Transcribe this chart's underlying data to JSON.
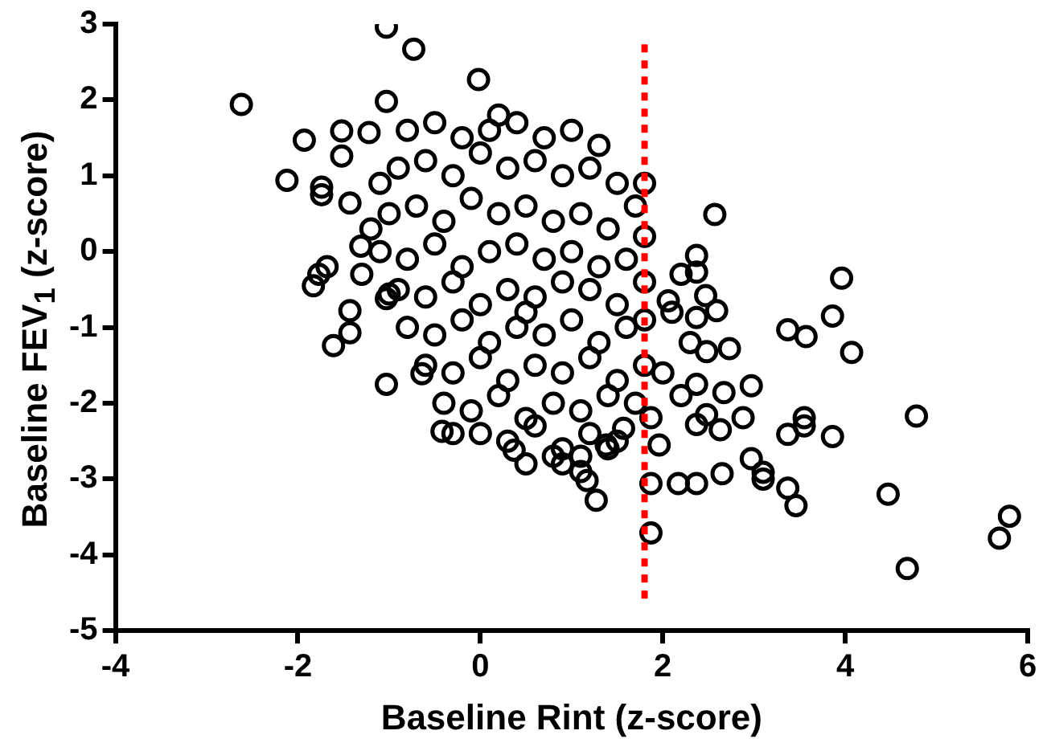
{
  "chart_data": {
    "type": "scatter",
    "xlabel": "Baseline Rint (z-score)",
    "ylabel": "Baseline FEV$_{1}$ (z-score)",
    "xlim": [
      -4,
      6
    ],
    "xticks": [
      -4,
      -2,
      0,
      2,
      4,
      6
    ],
    "ylim": [
      -5,
      3
    ],
    "yticks": [
      -5,
      -4,
      -3,
      -2,
      -1,
      0,
      1,
      2,
      3
    ],
    "grid": false,
    "legend": false,
    "marker": "circle",
    "ref_lines": [
      {
        "axis": "x",
        "value": 1.8,
        "color": "#ff0000",
        "line_style": "dotted"
      }
    ],
    "series": [
      {
        "color": "#000000",
        "x": [
          -1.03,
          -0.73,
          -0.02,
          -2.62,
          -1.03,
          -1.93,
          -1.52,
          -1.22,
          -1.52,
          -2.12,
          -1.74,
          -1.74,
          -1.43,
          -1.31,
          -1.77,
          -1.68,
          -1.83,
          -1.43,
          -1.43,
          -1.61,
          -1.03,
          -0.64,
          -0.42,
          0.37,
          -1.0,
          -1.03,
          2.57,
          2.37,
          2.37,
          3.96,
          3.86,
          3.37,
          3.57,
          4.07,
          2.06,
          2.47,
          2.59,
          2.37,
          2.73,
          2.48,
          2.97,
          2.67,
          2.37,
          3.55,
          3.55,
          3.37,
          3.86,
          4.78,
          2.88,
          2.37,
          2.63,
          2.48,
          1.96,
          1.87,
          2.97,
          3.1,
          3.1,
          2.65,
          2.37,
          2.17,
          1.87,
          3.37,
          3.46,
          4.47,
          1.17,
          1.27,
          1.87,
          4.68,
          5.8,
          5.69,
          1.57,
          1.38,
          -0.8,
          -0.5,
          -0.2,
          0.1,
          0.4,
          0.7,
          1.0,
          1.3,
          -0.9,
          -0.6,
          -0.3,
          0.0,
          0.3,
          0.6,
          0.9,
          1.2,
          1.5,
          -1.0,
          -0.7,
          -0.4,
          -0.1,
          0.2,
          0.5,
          0.8,
          1.1,
          1.4,
          1.7,
          -1.1,
          -0.8,
          -0.5,
          -0.2,
          0.1,
          0.4,
          0.7,
          1.0,
          1.3,
          1.6,
          -0.9,
          -0.6,
          -0.3,
          0.0,
          0.3,
          0.6,
          0.9,
          1.2,
          1.5,
          1.8,
          -0.8,
          -0.5,
          -0.2,
          0.1,
          0.4,
          0.7,
          1.0,
          1.3,
          1.6,
          -0.6,
          -0.3,
          0.0,
          0.3,
          0.6,
          0.9,
          1.2,
          1.5,
          1.8,
          -0.4,
          -0.1,
          0.2,
          0.5,
          0.8,
          1.1,
          1.4,
          1.7,
          0.0,
          0.3,
          0.6,
          0.9,
          1.2,
          1.5,
          0.5,
          0.8,
          1.1,
          1.4,
          1.8,
          1.8,
          1.8,
          2.2,
          2.1,
          2.3,
          2.0,
          2.2,
          -1.2,
          -1.3,
          -1.1,
          0.5,
          0.9,
          1.1,
          -0.3,
          0.2
        ],
        "values": [
          2.96,
          2.67,
          2.27,
          1.94,
          1.98,
          1.47,
          1.59,
          1.57,
          1.26,
          0.94,
          0.85,
          0.75,
          0.64,
          0.07,
          -0.3,
          -0.2,
          -0.45,
          -0.78,
          -1.07,
          -1.24,
          -1.75,
          -1.61,
          -2.37,
          -2.62,
          -0.56,
          -0.62,
          0.49,
          -0.05,
          -0.27,
          -0.35,
          -0.85,
          -1.03,
          -1.12,
          -1.33,
          -0.65,
          -0.58,
          -0.78,
          -0.87,
          -1.28,
          -1.32,
          -1.77,
          -1.86,
          -1.75,
          -2.19,
          -2.3,
          -2.41,
          -2.44,
          -2.17,
          -2.19,
          -2.28,
          -2.35,
          -2.15,
          -2.55,
          -2.19,
          -2.73,
          -2.91,
          -3.0,
          -2.93,
          -3.06,
          -3.06,
          -3.06,
          -3.12,
          -3.35,
          -3.2,
          -3.02,
          -3.28,
          -3.71,
          -4.18,
          -3.49,
          -3.78,
          -2.33,
          -2.55,
          1.6,
          1.7,
          1.5,
          1.6,
          1.7,
          1.5,
          1.6,
          1.4,
          1.1,
          1.2,
          1.0,
          1.3,
          1.1,
          1.2,
          1.0,
          1.1,
          0.9,
          0.5,
          0.6,
          0.4,
          0.7,
          0.5,
          0.6,
          0.4,
          0.5,
          0.3,
          0.6,
          0.0,
          -0.1,
          0.1,
          -0.2,
          0.0,
          0.1,
          -0.1,
          0.0,
          -0.2,
          -0.1,
          -0.5,
          -0.6,
          -0.4,
          -0.7,
          -0.5,
          -0.6,
          -0.4,
          -0.5,
          -0.7,
          -0.4,
          -1.0,
          -1.1,
          -0.9,
          -1.2,
          -1.0,
          -1.1,
          -0.9,
          -1.2,
          -1.0,
          -1.5,
          -1.6,
          -1.4,
          -1.7,
          -1.5,
          -1.6,
          -1.4,
          -1.7,
          -1.5,
          -2.0,
          -2.1,
          -1.9,
          -2.2,
          -2.0,
          -2.1,
          -1.9,
          -2.0,
          -2.4,
          -2.5,
          -2.3,
          -2.6,
          -2.4,
          -2.5,
          -2.8,
          -2.7,
          -2.9,
          -2.6,
          0.9,
          0.2,
          -0.9,
          -0.3,
          -0.8,
          -1.2,
          -1.6,
          -1.9,
          0.3,
          -0.3,
          0.9,
          -0.8,
          -2.8,
          -2.7,
          -2.4,
          1.8
        ]
      }
    ]
  }
}
